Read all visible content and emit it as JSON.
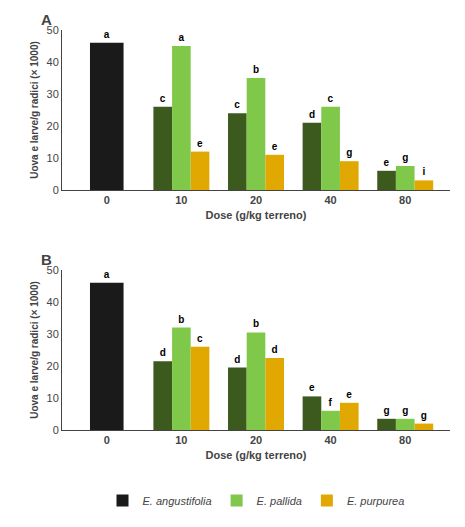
{
  "chart_data": [
    {
      "type": "bar",
      "title": "A",
      "categories": [
        "0",
        "10",
        "20",
        "40",
        "80"
      ],
      "xlabel": "Dose (g/kg terreno)",
      "ylabel": "Uova e larve/g radici (× 1000)",
      "ylim": [
        0,
        50
      ],
      "yticks": [
        0,
        10,
        20,
        30,
        40,
        50
      ],
      "grid": false,
      "legend": "bottom",
      "series": [
        {
          "name": "E. angustifolia",
          "colors": [
            "#1a1a1a",
            "#3d5a1e",
            "#3d5a1e",
            "#3d5a1e",
            "#3d5a1e"
          ],
          "values": [
            46,
            26,
            24,
            21,
            6
          ],
          "value_labels": [
            "a",
            "c",
            "c",
            "d",
            "e"
          ]
        },
        {
          "name": "E. pallida",
          "color": "#80c84a",
          "values": [
            null,
            45,
            35,
            26,
            7.5
          ],
          "value_labels": [
            null,
            "a",
            "b",
            "c",
            "g"
          ]
        },
        {
          "name": "E. purpurea",
          "color": "#e0a800",
          "values": [
            null,
            12,
            11,
            9,
            3
          ],
          "value_labels": [
            null,
            "e",
            "e",
            "g",
            "i"
          ]
        }
      ]
    },
    {
      "type": "bar",
      "title": "B",
      "categories": [
        "0",
        "10",
        "20",
        "40",
        "80"
      ],
      "xlabel": "Dose (g/kg terreno)",
      "ylabel": "Uova e larve/g radici (× 1000)",
      "ylim": [
        0,
        50
      ],
      "yticks": [
        0,
        10,
        20,
        30,
        40,
        50
      ],
      "grid": false,
      "legend": "bottom",
      "series": [
        {
          "name": "E. angustifolia",
          "colors": [
            "#1a1a1a",
            "#3d5a1e",
            "#3d5a1e",
            "#3d5a1e",
            "#3d5a1e"
          ],
          "values": [
            46,
            21.5,
            19.5,
            10.5,
            3.5
          ],
          "value_labels": [
            "a",
            "d",
            "d",
            "e",
            "g"
          ]
        },
        {
          "name": "E. pallida",
          "color": "#80c84a",
          "values": [
            null,
            32,
            30.5,
            6,
            3.5
          ],
          "value_labels": [
            null,
            "b",
            "b",
            "f",
            "g"
          ]
        },
        {
          "name": "E. purpurea",
          "color": "#e0a800",
          "values": [
            null,
            26,
            22.5,
            8.5,
            2
          ],
          "value_labels": [
            null,
            "c",
            "d",
            "e",
            "g"
          ]
        }
      ]
    }
  ]
}
